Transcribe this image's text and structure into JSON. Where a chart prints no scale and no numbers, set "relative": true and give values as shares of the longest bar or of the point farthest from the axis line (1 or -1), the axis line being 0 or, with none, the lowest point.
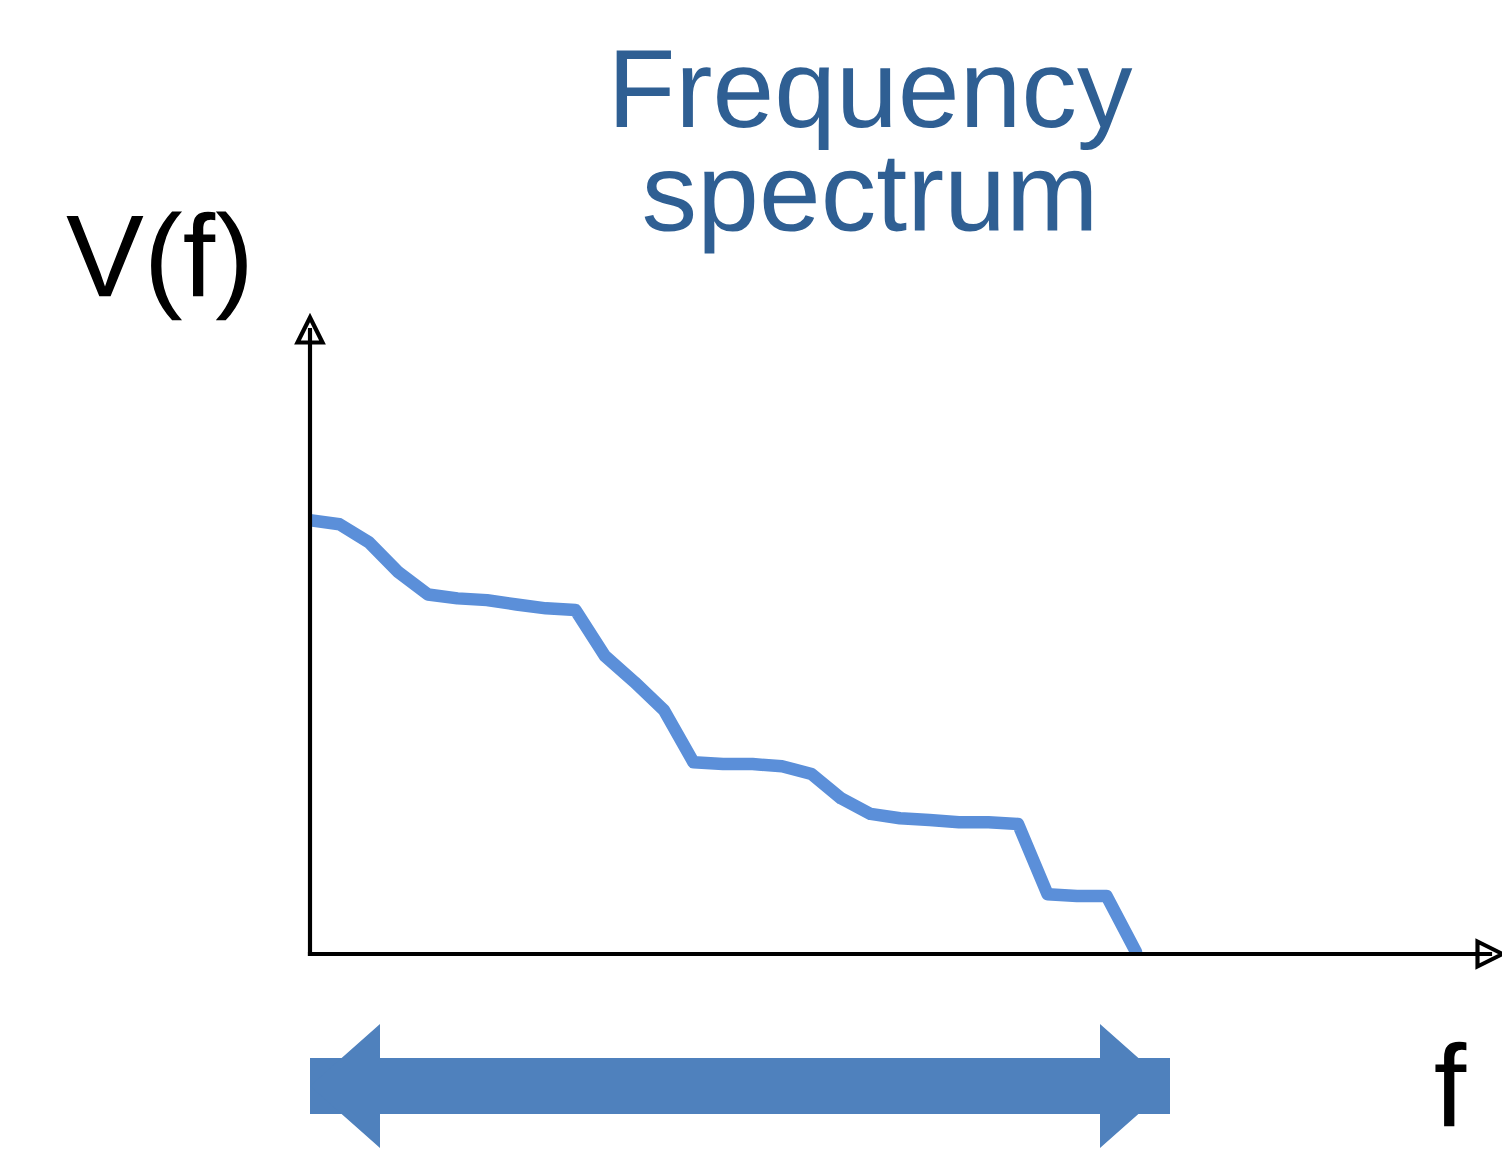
{
  "chart_data": {
    "type": "line",
    "title": "Frequency\nspectrum",
    "ylabel": "V(f)",
    "xlabel": "f",
    "relative": true,
    "legend": false,
    "marker": "none",
    "line_style": "solid",
    "categories": [
      null,
      null,
      null,
      null,
      null,
      null,
      null,
      null,
      null,
      null,
      null,
      null,
      null,
      null,
      null,
      null,
      null,
      null,
      null,
      null,
      null,
      null,
      null,
      null,
      null,
      null,
      null,
      null,
      null,
      null,
      null,
      null,
      null,
      null,
      null,
      null,
      null,
      null,
      null,
      null,
      null
    ],
    "series": [
      {
        "color": "#5b8fd9",
        "values": [
          1.0,
          0.991,
          0.949,
          0.88,
          0.829,
          0.82,
          0.816,
          0.806,
          0.797,
          0.793,
          0.687,
          0.627,
          0.562,
          0.442,
          0.438,
          0.438,
          0.433,
          0.415,
          0.359,
          0.323,
          0.313,
          0.309,
          0.304,
          0.304,
          0.3,
          0.138,
          0.134,
          0.134,
          0.005,
          null,
          null,
          null,
          null,
          null,
          null,
          null,
          null,
          null,
          null,
          null,
          null
        ]
      }
    ]
  }
}
